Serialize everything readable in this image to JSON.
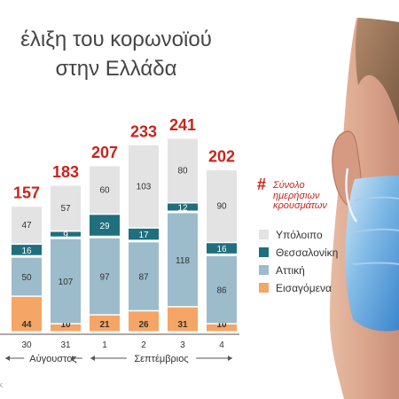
{
  "title_lines": [
    "έλιξη του κορωνοϊού",
    "στην Ελλάδα"
  ],
  "legend": {
    "title": "Σύνολο ημερήσιων κρουσμάτων",
    "symbol": "#",
    "items": [
      {
        "label": "Υπόλοιπο",
        "color": "#e3e3e3"
      },
      {
        "label": "Θεσσαλονίκη",
        "color": "#1f6f7d"
      },
      {
        "label": "Αττική",
        "color": "#9cbccb"
      },
      {
        "label": "Εισαγόμενα",
        "color": "#f5a565"
      }
    ]
  },
  "source_note": "ς",
  "chart_data": {
    "type": "bar",
    "stacked": true,
    "categories": [
      "30",
      "31",
      "1",
      "2",
      "3",
      "4"
    ],
    "month_labels": [
      {
        "label": "Αύγουστος",
        "categories": [
          "30",
          "31"
        ]
      },
      {
        "label": "Σεπτέμβριος",
        "categories": [
          "1",
          "2",
          "3",
          "4"
        ]
      }
    ],
    "totals": [
      157,
      183,
      207,
      233,
      241,
      202
    ],
    "series": [
      {
        "name": "Εισαγόμενα",
        "color": "#f5a565",
        "values": [
          44,
          10,
          21,
          26,
          31,
          10
        ]
      },
      {
        "name": "Αττική",
        "color": "#9cbccb",
        "values": [
          50,
          107,
          97,
          87,
          118,
          86
        ]
      },
      {
        "name": "Θεσσαλονίκη",
        "color": "#1f6f7d",
        "values": [
          16,
          9,
          29,
          17,
          12,
          16
        ]
      },
      {
        "name": "Υπόλοιπο",
        "color": "#e3e3e3",
        "values": [
          47,
          57,
          60,
          103,
          80,
          90
        ]
      }
    ],
    "ylim": [
      0,
      241
    ],
    "grid": false,
    "legend_position": "right"
  }
}
